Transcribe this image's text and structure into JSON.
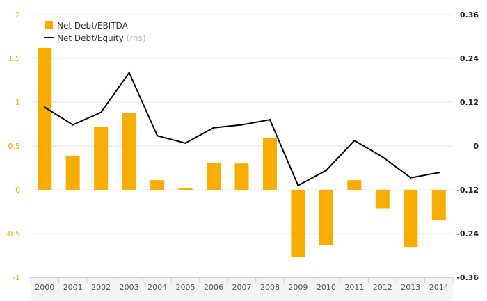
{
  "chart_data": {
    "type": "bar+line",
    "categories": [
      "2000",
      "2001",
      "2002",
      "2003",
      "2004",
      "2005",
      "2006",
      "2007",
      "2008",
      "2009",
      "2010",
      "2011",
      "2012",
      "2013",
      "2014"
    ],
    "series": [
      {
        "name": "Net Debt/EBITDA",
        "type": "bar",
        "axis": "left",
        "color": "#f7ac00",
        "values": [
          1.62,
          0.39,
          0.72,
          0.88,
          0.11,
          0.02,
          0.31,
          0.3,
          0.59,
          -0.77,
          -0.63,
          0.11,
          -0.21,
          -0.66,
          -0.35
        ]
      },
      {
        "name": "Net Debt/Equity",
        "name_suffix": "(rhs)",
        "type": "line",
        "axis": "right",
        "color": "#000000",
        "values": [
          0.106,
          0.058,
          0.092,
          0.201,
          0.028,
          0.008,
          0.05,
          0.058,
          0.072,
          -0.108,
          -0.067,
          0.015,
          -0.03,
          -0.087,
          -0.073
        ]
      }
    ],
    "ylim_left": [
      -1,
      2
    ],
    "ylim_right": [
      -0.36,
      0.36
    ],
    "yticks_left": [
      "2",
      "1.5",
      "1",
      "0.5",
      "0",
      "-0.5",
      "-1"
    ],
    "yticks_left_values": [
      2,
      1.5,
      1,
      0.5,
      0,
      -0.5,
      -1
    ],
    "yticks_right": [
      "0.36",
      "0.24",
      "0.12",
      "0",
      "-0.12",
      "-0.24",
      "-0.36"
    ],
    "yticks_right_values": [
      0.36,
      0.24,
      0.12,
      0,
      -0.12,
      -0.24,
      -0.36
    ],
    "grid": true,
    "legend": "top-left"
  }
}
